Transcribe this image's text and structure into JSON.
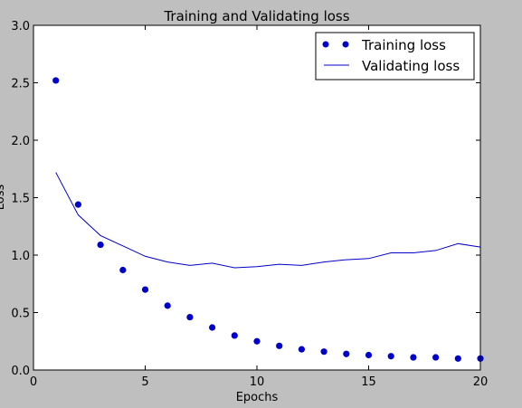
{
  "chart_data": {
    "type": "line",
    "title": "Training and Validating loss",
    "xlabel": "Epochs",
    "ylabel": "Loss",
    "xlim": [
      0,
      20
    ],
    "ylim": [
      0.0,
      3.0
    ],
    "xticks": [
      0,
      5,
      10,
      15,
      20
    ],
    "xtick_labels": [
      "0",
      "5",
      "10",
      "15",
      "20"
    ],
    "yticks": [
      0.0,
      0.5,
      1.0,
      1.5,
      2.0,
      2.5,
      3.0
    ],
    "ytick_labels": [
      "0.0",
      "0.5",
      "1.0",
      "1.5",
      "2.0",
      "2.5",
      "3.0"
    ],
    "grid": false,
    "legend_position": "top-right",
    "x": [
      1,
      2,
      3,
      4,
      5,
      6,
      7,
      8,
      9,
      10,
      11,
      12,
      13,
      14,
      15,
      16,
      17,
      18,
      19,
      20
    ],
    "series": [
      {
        "name": "Training loss",
        "style": "markers",
        "color": "#0000cc",
        "values": [
          2.52,
          1.44,
          1.09,
          0.87,
          0.7,
          0.56,
          0.46,
          0.37,
          0.3,
          0.25,
          0.21,
          0.18,
          0.16,
          0.14,
          0.13,
          0.12,
          0.11,
          0.11,
          0.1,
          0.1
        ]
      },
      {
        "name": "Validating loss",
        "style": "line",
        "color": "#0000cc",
        "values": [
          1.72,
          1.35,
          1.17,
          1.08,
          0.99,
          0.94,
          0.91,
          0.93,
          0.89,
          0.9,
          0.92,
          0.91,
          0.94,
          0.96,
          0.97,
          1.02,
          1.02,
          1.04,
          1.1,
          1.07
        ]
      }
    ]
  }
}
